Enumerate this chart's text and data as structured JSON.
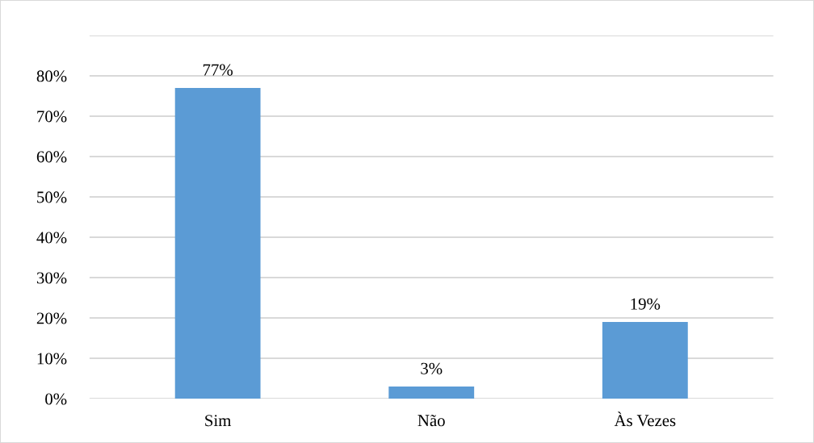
{
  "chart_data": {
    "type": "bar",
    "categories": [
      "Sim",
      "Não",
      "Às Vezes"
    ],
    "values": [
      77,
      3,
      19
    ],
    "value_labels": [
      "77%",
      "3%",
      "19%"
    ],
    "color": "#5b9bd5",
    "ylim": [
      0,
      90
    ],
    "yticks": [
      {
        "value": 0,
        "label": "0%"
      },
      {
        "value": 10,
        "label": "10%"
      },
      {
        "value": 20,
        "label": "20%"
      },
      {
        "value": 30,
        "label": "30%"
      },
      {
        "value": 40,
        "label": "40%"
      },
      {
        "value": 50,
        "label": "50%"
      },
      {
        "value": 60,
        "label": "60%"
      },
      {
        "value": 70,
        "label": "70%"
      },
      {
        "value": 80,
        "label": "80%"
      },
      {
        "value": 90,
        "label": null
      }
    ],
    "grid": "y",
    "legend": false
  }
}
